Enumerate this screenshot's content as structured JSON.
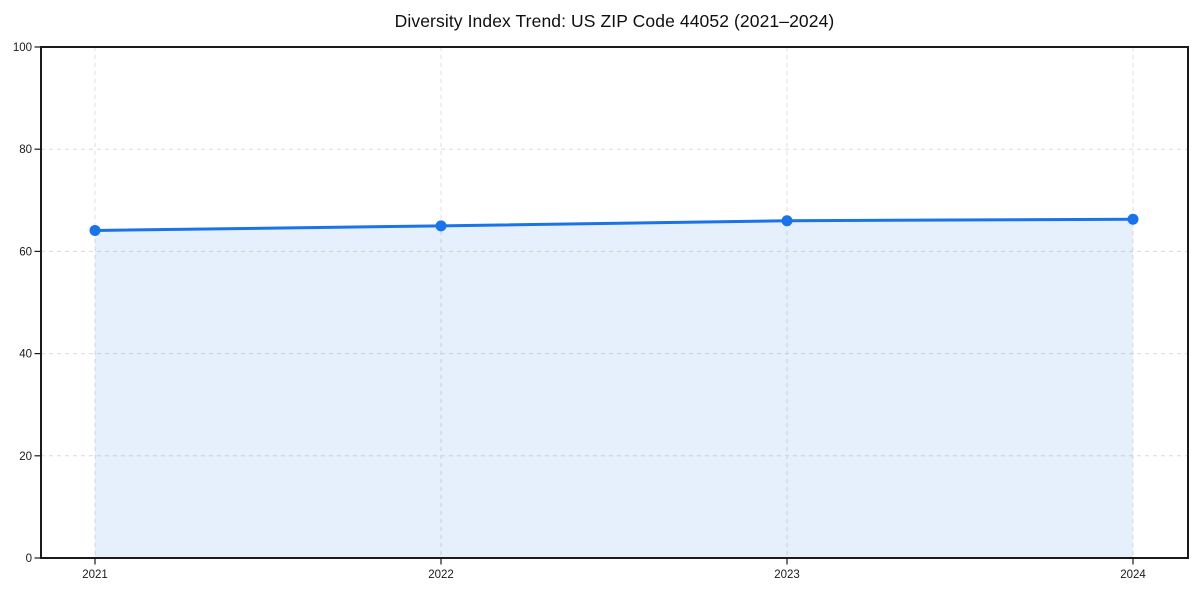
{
  "chart_data": {
    "type": "area",
    "title": "Diversity Index Trend: US ZIP Code 44052 (2021–2024)",
    "categories": [
      "2021",
      "2022",
      "2023",
      "2024"
    ],
    "series": [
      {
        "name": "Diversity Index",
        "values": [
          64.1,
          65.0,
          66.0,
          66.3
        ]
      }
    ],
    "xlabel": "",
    "ylabel": "",
    "ylim": [
      0,
      100
    ],
    "y_ticks": [
      0,
      20,
      40,
      60,
      80,
      100
    ],
    "y_tick_labels": [
      "0",
      "20",
      "40",
      "60",
      "80",
      "100"
    ],
    "grid": "dashed",
    "legend": "none",
    "colors": {
      "line": "#1a73e8",
      "fill": "rgba(26,115,232,0.11)",
      "gridline": "#dcdcdc",
      "spine": "#1a1a1a",
      "tick_text": "#1a1a1a"
    }
  }
}
